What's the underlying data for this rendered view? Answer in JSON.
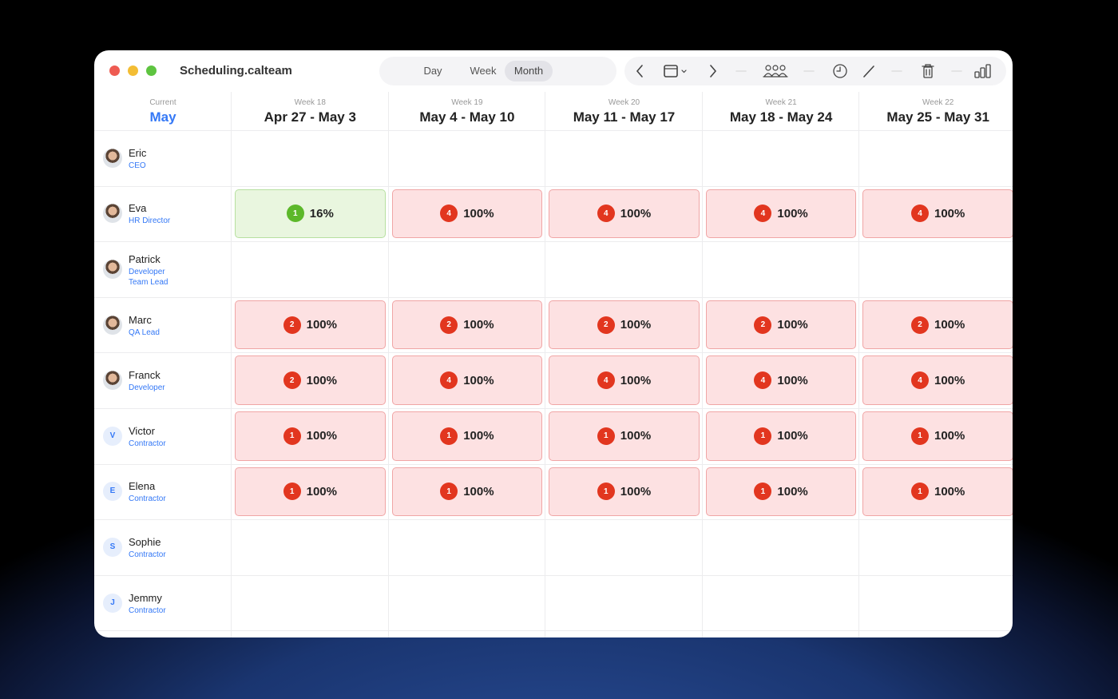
{
  "window": {
    "title": "Scheduling.calteam"
  },
  "toolbar": {
    "views": [
      "Day",
      "Week",
      "Month"
    ]
  },
  "header": {
    "current_label": "Current",
    "current_month": "May",
    "weeks": [
      {
        "label": "Week 18",
        "range": "Apr 27 - May 3"
      },
      {
        "label": "Week 19",
        "range": "May 4 - May 10"
      },
      {
        "label": "Week 20",
        "range": "May 11 - May 17"
      },
      {
        "label": "Week 21",
        "range": "May 18 - May 24"
      },
      {
        "label": "Week 22",
        "range": "May 25 - May 31"
      }
    ]
  },
  "people": [
    {
      "name": "Eric",
      "roles": [
        "CEO"
      ]
    },
    {
      "name": "Eva",
      "roles": [
        "HR Director"
      ]
    },
    {
      "name": "Patrick",
      "roles": [
        "Developer",
        "Team Lead"
      ]
    },
    {
      "name": "Marc",
      "roles": [
        "QA Lead"
      ]
    },
    {
      "name": "Franck",
      "roles": [
        "Developer"
      ]
    },
    {
      "name": "Victor",
      "roles": [
        "Contractor"
      ],
      "initial": "V"
    },
    {
      "name": "Elena",
      "roles": [
        "Contractor"
      ],
      "initial": "E"
    },
    {
      "name": "Sophie",
      "roles": [
        "Contractor"
      ],
      "initial": "S"
    },
    {
      "name": "Jemmy",
      "roles": [
        "Contractor"
      ],
      "initial": "J"
    }
  ],
  "schedule": [
    [
      null,
      null,
      null,
      null,
      null
    ],
    [
      {
        "count": 1,
        "load": "16%"
      },
      {
        "count": 4,
        "load": "100%"
      },
      {
        "count": 4,
        "load": "100%"
      },
      {
        "count": 4,
        "load": "100%"
      },
      {
        "count": 4,
        "load": "100%"
      }
    ],
    [
      null,
      null,
      null,
      null,
      null
    ],
    [
      {
        "count": 2,
        "load": "100%"
      },
      {
        "count": 2,
        "load": "100%"
      },
      {
        "count": 2,
        "load": "100%"
      },
      {
        "count": 2,
        "load": "100%"
      },
      {
        "count": 2,
        "load": "100%"
      }
    ],
    [
      {
        "count": 2,
        "load": "100%"
      },
      {
        "count": 4,
        "load": "100%"
      },
      {
        "count": 4,
        "load": "100%"
      },
      {
        "count": 4,
        "load": "100%"
      },
      {
        "count": 4,
        "load": "100%"
      }
    ],
    [
      {
        "count": 1,
        "load": "100%"
      },
      {
        "count": 1,
        "load": "100%"
      },
      {
        "count": 1,
        "load": "100%"
      },
      {
        "count": 1,
        "load": "100%"
      },
      {
        "count": 1,
        "load": "100%"
      }
    ],
    [
      {
        "count": 1,
        "load": "100%"
      },
      {
        "count": 1,
        "load": "100%"
      },
      {
        "count": 1,
        "load": "100%"
      },
      {
        "count": 1,
        "load": "100%"
      },
      {
        "count": 1,
        "load": "100%"
      }
    ],
    [
      null,
      null,
      null,
      null,
      null
    ],
    [
      null,
      null,
      null,
      null,
      null
    ]
  ]
}
